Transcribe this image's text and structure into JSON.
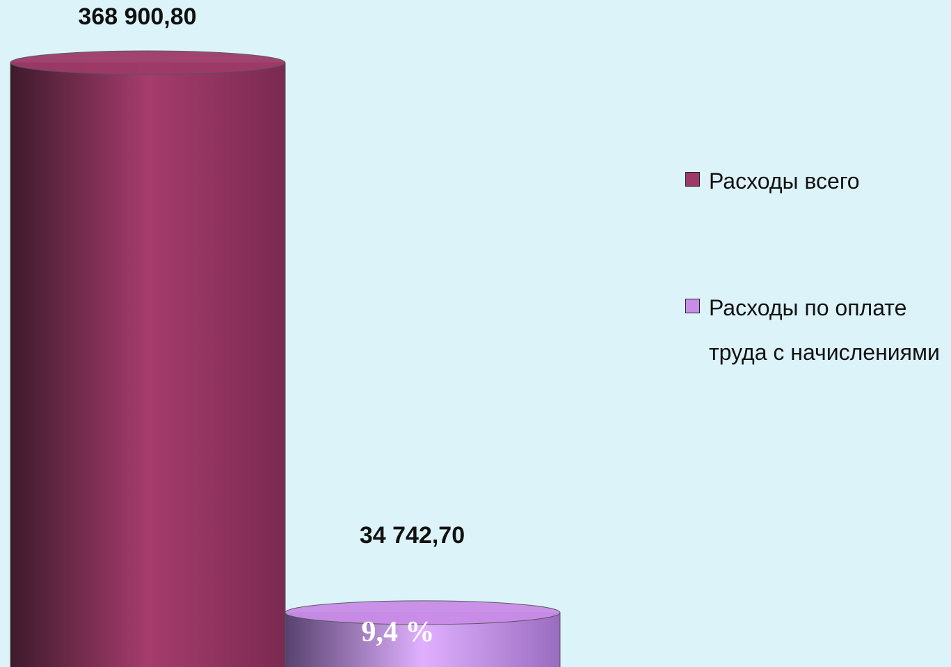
{
  "chart_data": {
    "type": "bar",
    "categories": [
      null
    ],
    "series": [
      {
        "name": "Расходы всего",
        "color": "#9e3a68",
        "values": [
          368900.8
        ],
        "value_labels": [
          "368 900,80"
        ]
      },
      {
        "name": "Расходы по оплате труда с начислениями",
        "color": "#c98ce8",
        "values": [
          34742.7
        ],
        "value_labels": [
          "34 742,70"
        ]
      }
    ],
    "annotation": "9,4 %",
    "legend": "right"
  }
}
